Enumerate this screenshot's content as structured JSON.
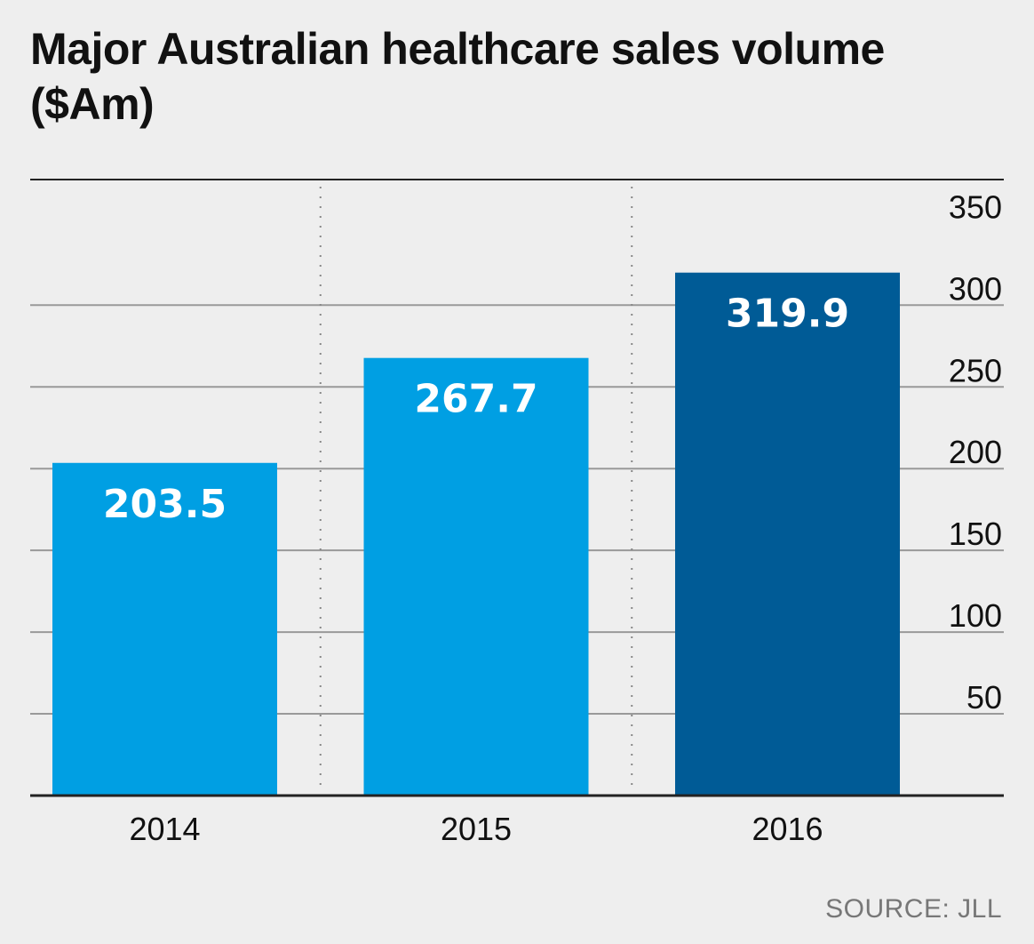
{
  "title": "Major Australian healthcare sales volume ($Am)",
  "source": "SOURCE: JLL",
  "colors": {
    "bar": "#009fe3",
    "bar_highlight": "#005b96",
    "grid": "#999999",
    "axis": "#222222",
    "label": "#ffffff",
    "tick": "#111111",
    "background": "#eeeeee"
  },
  "chart_data": {
    "type": "bar",
    "categories": [
      "2014",
      "2015",
      "2016"
    ],
    "values": [
      203.5,
      267.7,
      319.9
    ],
    "value_labels": [
      "203.5",
      "267.7",
      "319.9"
    ],
    "highlight_index": 2,
    "ylim": [
      0,
      350
    ],
    "yticks": [
      50,
      100,
      150,
      200,
      250,
      300,
      350
    ],
    "y_axis_side": "right",
    "grid": true,
    "xlabel": "",
    "ylabel": ""
  }
}
